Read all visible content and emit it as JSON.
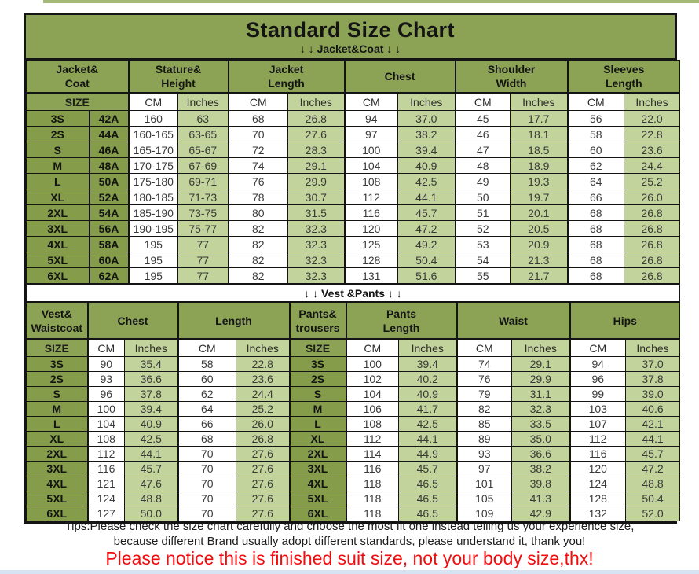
{
  "page": {
    "title": "Standard Size Chart",
    "jacket_subtitle": "↓ ↓  Jacket&Coat ↓ ↓",
    "vest_divider": "↓ ↓  Vest &Pants ↓ ↓",
    "tips_line1": "Tips:Please check the size chart carefully and choose the most fit one instead telling us your experience size,",
    "tips_line2": "because different Brand usually adopt different standards, please understand it, thank you!",
    "notice": "Please notice this is finished suit size, not your body size,thx!"
  },
  "labels": {
    "size": "SIZE",
    "cm": "CM",
    "inches": "Inches"
  },
  "colors": {
    "header_green": "#8ca355",
    "size_cell_green": "#859c4b",
    "inches_cell_green": "#c2d39b",
    "cm_cell_white": "#ffffff",
    "border_black": "#141414",
    "notice_red": "#f10d0d"
  },
  "jacket_table": {
    "group_headers": {
      "jacket_coat": "Jacket&\nCoat",
      "stature_height": "Stature&\nHeight",
      "jacket_length": "Jacket\nLength",
      "chest": "Chest",
      "shoulder_width": "Shoulder\nWidth",
      "sleeves_length": "Sleeves\nLength"
    },
    "rows": [
      [
        "3S",
        "42A",
        "160",
        "63",
        "68",
        "26.8",
        "94",
        "37.0",
        "45",
        "17.7",
        "56",
        "22.0"
      ],
      [
        "2S",
        "44A",
        "160-165",
        "63-65",
        "70",
        "27.6",
        "97",
        "38.2",
        "46",
        "18.1",
        "58",
        "22.8"
      ],
      [
        "S",
        "46A",
        "165-170",
        "65-67",
        "72",
        "28.3",
        "100",
        "39.4",
        "47",
        "18.5",
        "60",
        "23.6"
      ],
      [
        "M",
        "48A",
        "170-175",
        "67-69",
        "74",
        "29.1",
        "104",
        "40.9",
        "48",
        "18.9",
        "62",
        "24.4"
      ],
      [
        "L",
        "50A",
        "175-180",
        "69-71",
        "76",
        "29.9",
        "108",
        "42.5",
        "49",
        "19.3",
        "64",
        "25.2"
      ],
      [
        "XL",
        "52A",
        "180-185",
        "71-73",
        "78",
        "30.7",
        "112",
        "44.1",
        "50",
        "19.7",
        "66",
        "26.0"
      ],
      [
        "2XL",
        "54A",
        "185-190",
        "73-75",
        "80",
        "31.5",
        "116",
        "45.7",
        "51",
        "20.1",
        "68",
        "26.8"
      ],
      [
        "3XL",
        "56A",
        "190-195",
        "75-77",
        "82",
        "32.3",
        "120",
        "47.2",
        "52",
        "20.5",
        "68",
        "26.8"
      ],
      [
        "4XL",
        "58A",
        "195",
        "77",
        "82",
        "32.3",
        "125",
        "49.2",
        "53",
        "20.9",
        "68",
        "26.8"
      ],
      [
        "5XL",
        "60A",
        "195",
        "77",
        "82",
        "32.3",
        "128",
        "50.4",
        "54",
        "21.3",
        "68",
        "26.8"
      ],
      [
        "6XL",
        "62A",
        "195",
        "77",
        "82",
        "32.3",
        "131",
        "51.6",
        "55",
        "21.7",
        "68",
        "26.8"
      ]
    ]
  },
  "vest_table": {
    "group_headers": {
      "vest_waistcoat": "Vest&\nWaistcoat",
      "chest": "Chest",
      "length": "Length",
      "pants_trousers": "Pants&\ntrousers",
      "pants_length": "Pants\nLength",
      "waist": "Waist",
      "hips": "Hips"
    },
    "rows": [
      [
        "3S",
        "90",
        "35.4",
        "58",
        "22.8",
        "3S",
        "100",
        "39.4",
        "74",
        "29.1",
        "94",
        "37.0"
      ],
      [
        "2S",
        "93",
        "36.6",
        "60",
        "23.6",
        "2S",
        "102",
        "40.2",
        "76",
        "29.9",
        "96",
        "37.8"
      ],
      [
        "S",
        "96",
        "37.8",
        "62",
        "24.4",
        "S",
        "104",
        "40.9",
        "79",
        "31.1",
        "99",
        "39.0"
      ],
      [
        "M",
        "100",
        "39.4",
        "64",
        "25.2",
        "M",
        "106",
        "41.7",
        "82",
        "32.3",
        "103",
        "40.6"
      ],
      [
        "L",
        "104",
        "40.9",
        "66",
        "26.0",
        "L",
        "108",
        "42.5",
        "85",
        "33.5",
        "107",
        "42.1"
      ],
      [
        "XL",
        "108",
        "42.5",
        "68",
        "26.8",
        "XL",
        "112",
        "44.1",
        "89",
        "35.0",
        "112",
        "44.1"
      ],
      [
        "2XL",
        "112",
        "44.1",
        "70",
        "27.6",
        "2XL",
        "114",
        "44.9",
        "93",
        "36.6",
        "116",
        "45.7"
      ],
      [
        "3XL",
        "116",
        "45.7",
        "70",
        "27.6",
        "3XL",
        "116",
        "45.7",
        "97",
        "38.2",
        "120",
        "47.2"
      ],
      [
        "4XL",
        "121",
        "47.6",
        "70",
        "27.6",
        "4XL",
        "118",
        "46.5",
        "101",
        "39.8",
        "124",
        "48.8"
      ],
      [
        "5XL",
        "124",
        "48.8",
        "70",
        "27.6",
        "5XL",
        "118",
        "46.5",
        "105",
        "41.3",
        "128",
        "50.4"
      ],
      [
        "6XL",
        "127",
        "50.0",
        "70",
        "27.6",
        "6XL",
        "118",
        "46.5",
        "109",
        "42.9",
        "132",
        "52.0"
      ]
    ]
  }
}
